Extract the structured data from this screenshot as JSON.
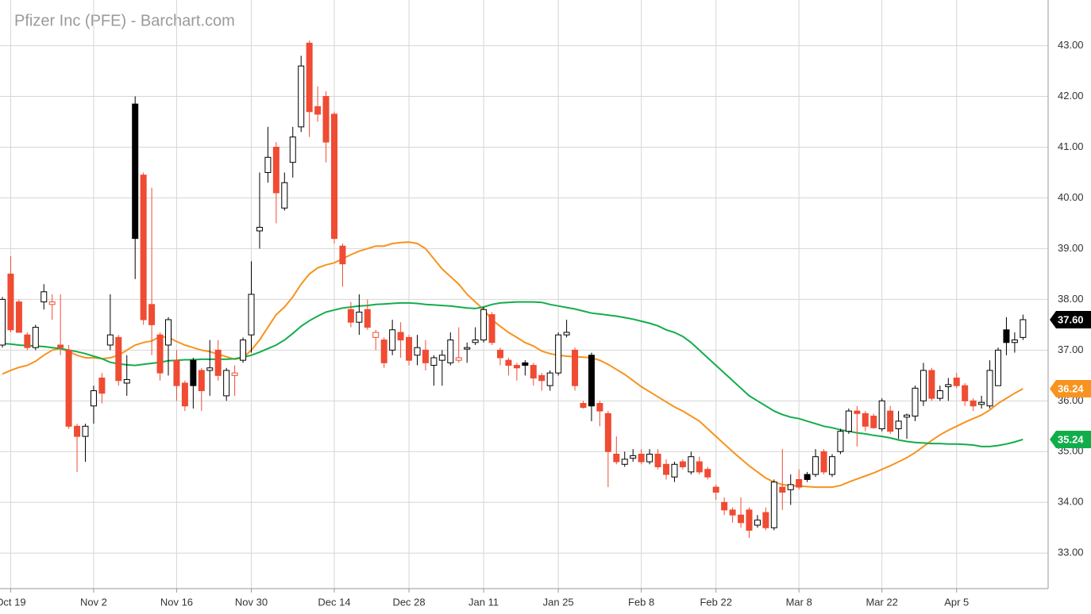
{
  "chart_data": {
    "type": "candlestick",
    "title": "Pfizer Inc (PFE) - Barchart.com",
    "categories": [
      null,
      "Oct 19",
      null,
      null,
      null,
      null,
      null,
      null,
      null,
      null,
      null,
      "Nov 2",
      null,
      null,
      null,
      null,
      null,
      null,
      null,
      null,
      null,
      "Nov 16",
      null,
      null,
      null,
      null,
      null,
      null,
      null,
      null,
      "Nov 30",
      null,
      null,
      null,
      null,
      null,
      null,
      null,
      null,
      null,
      "Dec 14",
      null,
      null,
      null,
      null,
      null,
      null,
      null,
      null,
      "Dec 28",
      null,
      null,
      null,
      null,
      null,
      null,
      null,
      null,
      "Jan 11",
      null,
      null,
      null,
      null,
      null,
      null,
      null,
      null,
      "Jan 25",
      null,
      null,
      null,
      null,
      null,
      null,
      null,
      null,
      null,
      "Feb 8",
      null,
      null,
      null,
      null,
      null,
      null,
      null,
      null,
      "Feb 22",
      null,
      null,
      null,
      null,
      null,
      null,
      null,
      null,
      null,
      "Mar 8",
      null,
      null,
      null,
      null,
      null,
      null,
      null,
      null,
      null,
      "Mar 22",
      null,
      null,
      null,
      null,
      null,
      null,
      null,
      null,
      "Apr 5",
      null,
      null,
      null,
      null,
      null,
      null,
      null,
      null
    ],
    "open": [
      37.1,
      38.5,
      37.95,
      37.3,
      37.05,
      37.95,
      37.9,
      37.1,
      37.0,
      35.5,
      35.3,
      35.9,
      36.45,
      37.1,
      37.25,
      36.35,
      41.85,
      40.45,
      37.9,
      37.3,
      37.1,
      36.8,
      36.35,
      36.8,
      36.6,
      36.6,
      37.0,
      36.1,
      36.5,
      36.8,
      37.3,
      39.35,
      40.5,
      41.0,
      39.8,
      40.7,
      41.4,
      43.05,
      41.8,
      42.0,
      41.65,
      39.05,
      37.8,
      37.55,
      37.8,
      37.25,
      37.2,
      37.0,
      37.35,
      37.25,
      36.9,
      37.0,
      36.7,
      36.8,
      36.75,
      36.8,
      37.02,
      37.15,
      37.2,
      37.7,
      37.0,
      36.8,
      36.7,
      36.75,
      36.7,
      36.5,
      36.3,
      36.55,
      37.3,
      37.0,
      35.95,
      36.9,
      35.95,
      35.75,
      34.95,
      34.75,
      34.87,
      34.95,
      34.8,
      34.95,
      34.75,
      34.5,
      34.8,
      34.6,
      34.8,
      34.65,
      34.3,
      34.0,
      33.85,
      33.75,
      33.85,
      33.55,
      33.8,
      33.5,
      34.3,
      34.25,
      34.45,
      34.55,
      34.55,
      35.0,
      34.55,
      35.0,
      35.4,
      35.8,
      35.75,
      35.7,
      35.45,
      35.8,
      35.45,
      35.68,
      35.7,
      36.0,
      36.6,
      36.05,
      36.28,
      36.45,
      36.3,
      36.0,
      35.93,
      35.9,
      36.3,
      37.4,
      37.15,
      37.25
    ],
    "high": [
      38.05,
      38.85,
      38.0,
      37.35,
      37.5,
      38.3,
      38.1,
      38.1,
      37.1,
      35.55,
      35.55,
      36.3,
      36.55,
      38.1,
      37.3,
      36.9,
      42.0,
      40.5,
      40.2,
      37.35,
      37.65,
      37.0,
      36.4,
      36.85,
      36.65,
      37.2,
      37.2,
      36.65,
      36.7,
      37.25,
      38.75,
      40.5,
      41.4,
      41.1,
      40.5,
      41.4,
      42.8,
      43.1,
      42.2,
      42.1,
      41.7,
      39.1,
      37.95,
      38.1,
      38.0,
      37.4,
      37.25,
      37.6,
      37.55,
      37.3,
      37.3,
      37.2,
      36.9,
      37.0,
      37.35,
      37.45,
      37.15,
      37.45,
      37.85,
      37.75,
      37.05,
      36.85,
      36.75,
      36.8,
      36.75,
      36.55,
      36.6,
      37.35,
      37.6,
      37.05,
      36.0,
      36.95,
      36.0,
      35.8,
      35.3,
      35.0,
      35.05,
      35.05,
      35.05,
      35.05,
      34.85,
      34.8,
      34.85,
      35.0,
      34.9,
      34.7,
      34.35,
      34.1,
      33.9,
      34.1,
      33.9,
      33.75,
      33.9,
      34.45,
      35.05,
      34.55,
      34.65,
      34.6,
      35.05,
      35.05,
      34.95,
      35.45,
      35.85,
      35.9,
      35.8,
      35.75,
      36.05,
      35.9,
      35.8,
      35.75,
      36.3,
      36.75,
      36.65,
      36.3,
      36.45,
      36.55,
      36.35,
      36.05,
      36.1,
      36.8,
      37.05,
      37.65,
      37.35,
      37.7
    ],
    "low": [
      37.05,
      37.35,
      37.4,
      37.0,
      37.0,
      37.8,
      37.6,
      36.9,
      35.45,
      34.6,
      34.8,
      35.55,
      35.95,
      37.0,
      36.3,
      36.1,
      38.4,
      37.5,
      36.9,
      36.4,
      36.5,
      36.0,
      35.8,
      35.85,
      35.8,
      36.1,
      36.4,
      36.0,
      36.1,
      36.75,
      36.95,
      39.0,
      40.3,
      39.5,
      39.75,
      40.4,
      41.3,
      41.2,
      41.5,
      40.7,
      39.1,
      38.25,
      37.45,
      37.3,
      37.4,
      37.0,
      36.65,
      36.9,
      36.85,
      36.7,
      36.7,
      36.6,
      36.3,
      36.3,
      36.7,
      36.75,
      36.75,
      37.1,
      37.15,
      37.1,
      36.7,
      36.5,
      36.4,
      36.5,
      36.3,
      36.2,
      36.2,
      36.5,
      37.25,
      36.2,
      35.85,
      35.6,
      35.5,
      34.3,
      34.75,
      34.7,
      34.8,
      34.75,
      34.75,
      34.65,
      34.45,
      34.4,
      34.65,
      34.55,
      34.55,
      34.45,
      34.05,
      33.75,
      33.6,
      33.5,
      33.3,
      33.5,
      33.45,
      33.45,
      33.85,
      33.95,
      34.25,
      34.4,
      34.5,
      34.55,
      34.5,
      34.95,
      35.35,
      35.1,
      35.4,
      35.45,
      35.4,
      35.35,
      35.25,
      35.25,
      35.6,
      35.9,
      36.0,
      36.0,
      36.0,
      36.25,
      35.9,
      35.8,
      35.85,
      35.85,
      36.3,
      36.9,
      36.95,
      37.2
    ],
    "close": [
      38.0,
      37.4,
      37.35,
      37.05,
      37.45,
      38.15,
      37.95,
      37.05,
      35.5,
      35.3,
      35.5,
      36.2,
      36.15,
      37.3,
      36.4,
      36.42,
      39.2,
      37.6,
      37.5,
      36.55,
      37.6,
      36.3,
      35.9,
      36.3,
      36.2,
      36.65,
      36.5,
      36.6,
      36.55,
      37.2,
      38.1,
      39.42,
      40.8,
      40.1,
      40.3,
      41.2,
      42.6,
      41.7,
      41.65,
      41.1,
      39.2,
      38.7,
      37.55,
      37.75,
      37.45,
      37.35,
      36.75,
      37.4,
      37.2,
      36.8,
      37.05,
      36.75,
      36.85,
      36.9,
      37.2,
      36.85,
      37.05,
      37.2,
      37.8,
      37.15,
      36.85,
      36.7,
      36.65,
      36.7,
      36.45,
      36.4,
      36.55,
      37.3,
      37.35,
      36.3,
      35.87,
      35.9,
      35.8,
      35.0,
      34.8,
      34.85,
      34.92,
      34.8,
      34.95,
      34.7,
      34.55,
      34.75,
      34.7,
      34.9,
      34.6,
      34.5,
      34.2,
      33.85,
      33.75,
      33.6,
      33.45,
      33.65,
      33.5,
      34.4,
      34.2,
      34.35,
      34.3,
      34.45,
      34.9,
      34.6,
      34.9,
      35.4,
      35.8,
      35.75,
      35.5,
      35.47,
      36.0,
      35.4,
      35.6,
      35.72,
      36.25,
      36.6,
      36.05,
      36.2,
      36.32,
      36.3,
      36.0,
      35.9,
      35.97,
      36.6,
      37.0,
      37.15,
      37.2,
      37.6
    ],
    "last_close_label": "37.60",
    "colors": {
      "up": "#000000",
      "down": "#f04b33"
    },
    "overlays": [
      {
        "color": "#f7931e",
        "last_label": "36.24",
        "values": [
          36.53,
          36.6,
          36.66,
          36.7,
          36.78,
          36.9,
          37.0,
          37.03,
          36.97,
          36.9,
          36.85,
          36.85,
          36.83,
          36.85,
          36.9,
          37.0,
          37.1,
          37.15,
          37.18,
          37.27,
          37.25,
          37.17,
          37.1,
          37.05,
          37.0,
          36.97,
          36.92,
          36.87,
          36.82,
          36.85,
          37.0,
          37.2,
          37.45,
          37.7,
          37.85,
          38.05,
          38.3,
          38.5,
          38.62,
          38.68,
          38.72,
          38.8,
          38.88,
          38.95,
          39.0,
          39.05,
          39.05,
          39.1,
          39.12,
          39.13,
          39.1,
          39.0,
          38.8,
          38.6,
          38.45,
          38.3,
          38.1,
          37.95,
          37.8,
          37.6,
          37.47,
          37.35,
          37.25,
          37.15,
          37.08,
          36.98,
          36.93,
          36.9,
          36.88,
          36.87,
          36.86,
          36.85,
          36.8,
          36.72,
          36.62,
          36.52,
          36.4,
          36.28,
          36.18,
          36.08,
          35.98,
          35.88,
          35.8,
          35.7,
          35.6,
          35.45,
          35.3,
          35.15,
          35.0,
          34.86,
          34.72,
          34.6,
          34.48,
          34.4,
          34.35,
          34.33,
          34.32,
          34.31,
          34.3,
          34.3,
          34.3,
          34.33,
          34.4,
          34.46,
          34.52,
          34.58,
          34.65,
          34.72,
          34.8,
          34.88,
          34.98,
          35.1,
          35.22,
          35.33,
          35.42,
          35.5,
          35.58,
          35.65,
          35.72,
          35.82,
          35.95,
          36.05,
          36.15,
          36.24
        ]
      },
      {
        "color": "#12ad4b",
        "last_label": "35.24",
        "values": [
          37.13,
          37.12,
          37.1,
          37.09,
          37.08,
          37.07,
          37.05,
          37.03,
          37.0,
          36.97,
          36.93,
          36.88,
          36.83,
          36.76,
          36.73,
          36.71,
          36.7,
          36.72,
          36.74,
          36.76,
          36.79,
          36.8,
          36.81,
          36.81,
          36.82,
          36.82,
          36.82,
          36.82,
          36.83,
          36.86,
          36.9,
          36.96,
          37.03,
          37.1,
          37.2,
          37.33,
          37.47,
          37.58,
          37.67,
          37.75,
          37.79,
          37.83,
          37.85,
          37.87,
          37.88,
          37.9,
          37.91,
          37.92,
          37.93,
          37.93,
          37.92,
          37.9,
          37.89,
          37.88,
          37.87,
          37.85,
          37.83,
          37.82,
          37.85,
          37.9,
          37.93,
          37.94,
          37.95,
          37.95,
          37.95,
          37.94,
          37.9,
          37.87,
          37.84,
          37.81,
          37.77,
          37.73,
          37.71,
          37.69,
          37.67,
          37.64,
          37.61,
          37.57,
          37.53,
          37.48,
          37.4,
          37.35,
          37.27,
          37.15,
          37.0,
          36.85,
          36.7,
          36.55,
          36.4,
          36.25,
          36.1,
          36.0,
          35.9,
          35.8,
          35.73,
          35.68,
          35.65,
          35.6,
          35.55,
          35.5,
          35.47,
          35.43,
          35.4,
          35.37,
          35.35,
          35.32,
          35.3,
          35.27,
          35.23,
          35.2,
          35.18,
          35.17,
          35.16,
          35.16,
          35.15,
          35.15,
          35.14,
          35.13,
          35.1,
          35.1,
          35.12,
          35.15,
          35.19,
          35.24
        ]
      }
    ],
    "ylim": [
      32.3,
      43.9
    ],
    "yticks": [
      {
        "value": 33,
        "label": "33.00"
      },
      {
        "value": 34,
        "label": "34.00"
      },
      {
        "value": 35,
        "label": "35.00"
      },
      {
        "value": 36,
        "label": "36.00"
      },
      {
        "value": 37,
        "label": "37.00"
      },
      {
        "value": 38,
        "label": "38.00"
      },
      {
        "value": 39,
        "label": "39.00"
      },
      {
        "value": 40,
        "label": "40.00"
      },
      {
        "value": 41,
        "label": "41.00"
      },
      {
        "value": 42,
        "label": "42.00"
      },
      {
        "value": 43,
        "label": "43.00"
      }
    ],
    "grid": true
  }
}
